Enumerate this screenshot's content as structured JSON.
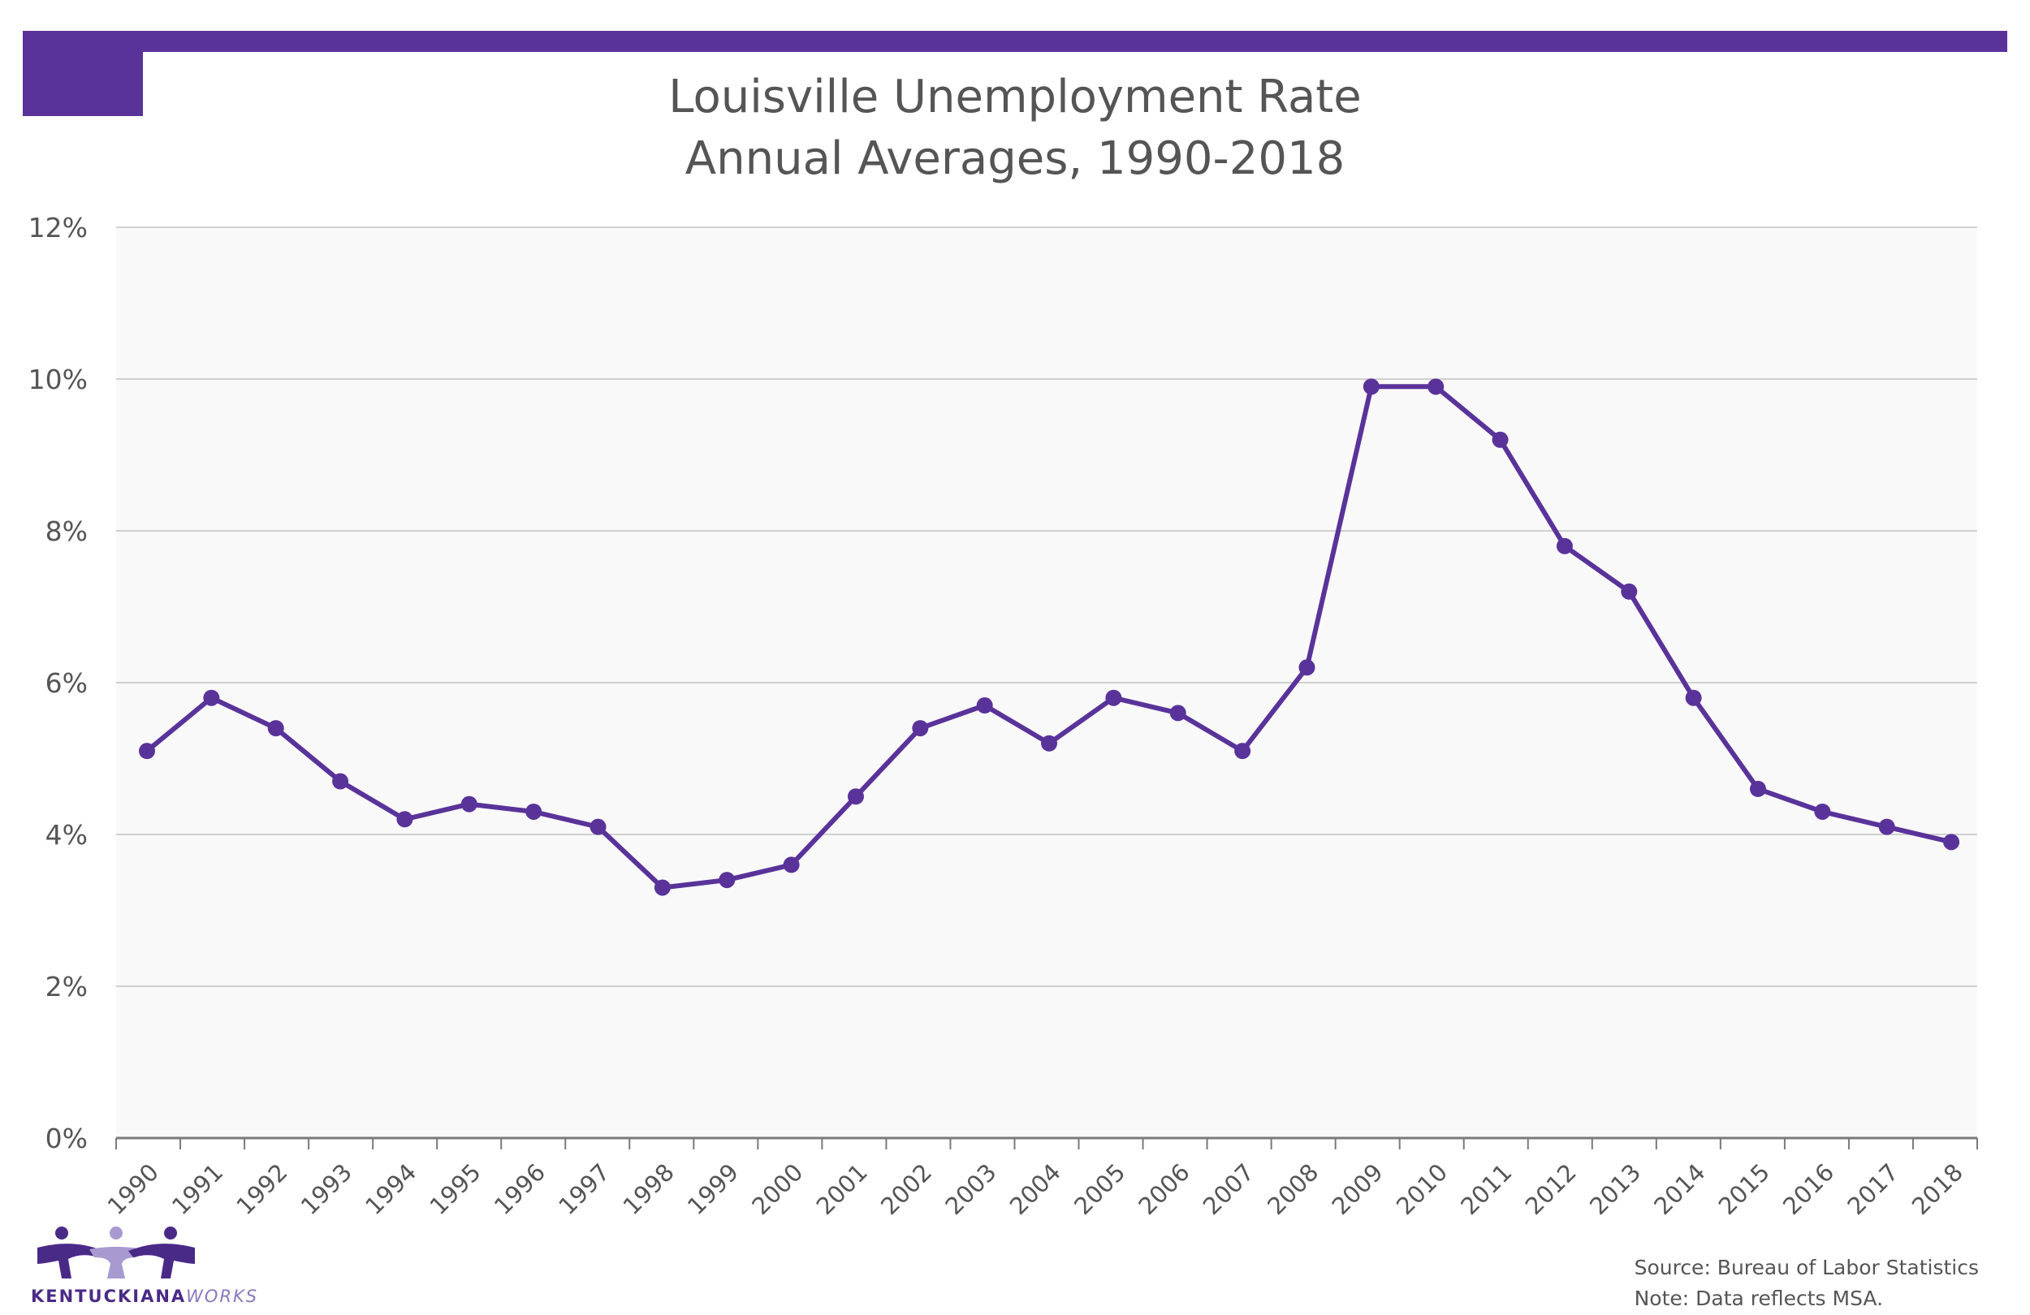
{
  "header": {
    "title_line1": "Louisville Unemployment Rate",
    "title_line2": "Annual Averages, 1990-2018"
  },
  "colors": {
    "accent": "#59339a",
    "plot_background": "#f9f9f9",
    "gridline": "#d0d0d0",
    "text": "#555555"
  },
  "chart_data": {
    "type": "line",
    "title": "Louisville Unemployment Rate Annual Averages, 1990-2018",
    "xlabel": "",
    "ylabel": "",
    "categories": [
      "1990",
      "1991",
      "1992",
      "1993",
      "1994",
      "1995",
      "1996",
      "1997",
      "1998",
      "1999",
      "2000",
      "2001",
      "2002",
      "2003",
      "2004",
      "2005",
      "2006",
      "2007",
      "2008",
      "2009",
      "2010",
      "2011",
      "2012",
      "2013",
      "2014",
      "2015",
      "2016",
      "2017",
      "2018"
    ],
    "series": [
      {
        "values": [
          5.1,
          5.8,
          5.4,
          4.7,
          4.2,
          4.4,
          4.3,
          4.1,
          3.3,
          3.4,
          3.6,
          4.5,
          5.4,
          5.7,
          5.2,
          5.8,
          5.6,
          5.1,
          6.2,
          9.9,
          9.9,
          9.2,
          7.8,
          7.2,
          5.8,
          4.6,
          4.3,
          4.1,
          3.9
        ]
      }
    ],
    "ylim": [
      0,
      12
    ],
    "yticks": [
      0,
      2,
      4,
      6,
      8,
      10,
      12
    ],
    "ytick_labels": [
      "0%",
      "2%",
      "4%",
      "6%",
      "8%",
      "10%",
      "12%"
    ],
    "grid": "horizontal",
    "legend": "none"
  },
  "footer": {
    "source": "Source: Bureau of Labor Statistics",
    "note": "Note: Data reflects MSA.",
    "logo_main": "KENTUCKIANA",
    "logo_suffix": "WORKS"
  }
}
